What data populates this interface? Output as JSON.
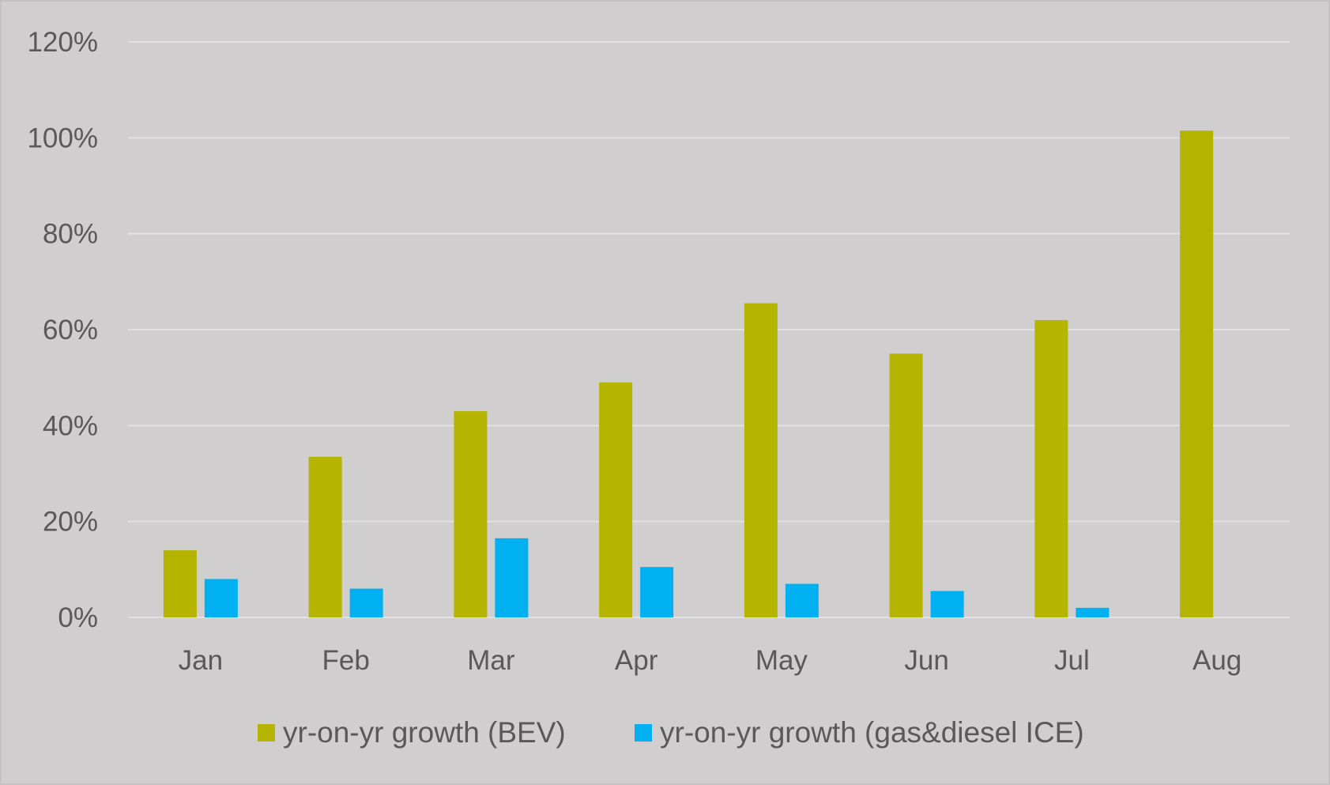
{
  "chart_data": {
    "type": "bar",
    "title": "",
    "xlabel": "",
    "ylabel": "",
    "categories": [
      "Jan",
      "Feb",
      "Mar",
      "Apr",
      "May",
      "Jun",
      "Jul",
      "Aug"
    ],
    "series": [
      {
        "name": "yr-on-yr growth (BEV)",
        "color": "#b5b400",
        "values": [
          14,
          33.5,
          43,
          49,
          65.5,
          55,
          62,
          101.5
        ]
      },
      {
        "name": "yr-on-yr growth (gas&diesel ICE)",
        "color": "#00b0f0",
        "values": [
          8,
          6,
          16.5,
          10.5,
          7,
          5.5,
          2,
          null
        ]
      }
    ],
    "ylim": [
      0,
      120
    ],
    "y_ticks": [
      0,
      20,
      40,
      60,
      80,
      100,
      120
    ],
    "y_tick_labels": [
      "0%",
      "20%",
      "40%",
      "60%",
      "80%",
      "100%",
      "120%"
    ],
    "y_unit": "%",
    "grid": true,
    "legend_position": "bottom",
    "background_color": "#d0cecf",
    "gridline_color": "#e3e2e2",
    "text_color": "#595959"
  }
}
